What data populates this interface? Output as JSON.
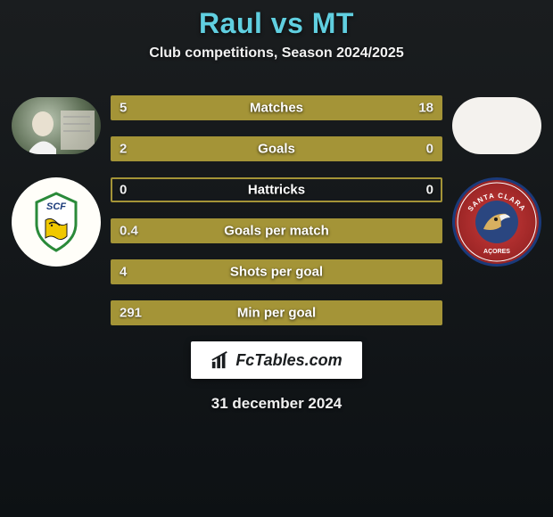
{
  "header": {
    "title": "Raul vs MT",
    "title_color": "#60cfe0",
    "title_fontsize": 32,
    "subtitle": "Club competitions, Season 2024/2025",
    "subtitle_color": "#f2f2f2",
    "subtitle_fontsize": 16
  },
  "background": {
    "gradient_top": "#1a1d1f",
    "gradient_bottom": "#0d1114"
  },
  "stats": {
    "border_color": "#a49437",
    "fill_left_color": "#a49437",
    "fill_right_color": "#a49437",
    "empty_color": "transparent",
    "rows": [
      {
        "label": "Matches",
        "left_val": "5",
        "right_val": "18",
        "left_pct": 22,
        "right_pct": 78
      },
      {
        "label": "Goals",
        "left_val": "2",
        "right_val": "0",
        "left_pct": 100,
        "right_pct": 0
      },
      {
        "label": "Hattricks",
        "left_val": "0",
        "right_val": "0",
        "left_pct": 0,
        "right_pct": 0
      },
      {
        "label": "Goals per match",
        "left_val": "0.4",
        "right_val": "",
        "left_pct": 100,
        "right_pct": 0
      },
      {
        "label": "Shots per goal",
        "left_val": "4",
        "right_val": "",
        "left_pct": 100,
        "right_pct": 0
      },
      {
        "label": "Min per goal",
        "left_val": "291",
        "right_val": "",
        "left_pct": 100,
        "right_pct": 0
      }
    ]
  },
  "brand": {
    "text": "FcTables.com",
    "bg_color": "#ffffff",
    "text_color": "#1a1d1f",
    "fontsize": 18
  },
  "footer": {
    "date": "31 december 2024",
    "date_color": "#f0f0f0",
    "date_fontsize": 17
  },
  "clubs": {
    "left_label": "SCF",
    "right_label": "SANTA CLARA"
  }
}
